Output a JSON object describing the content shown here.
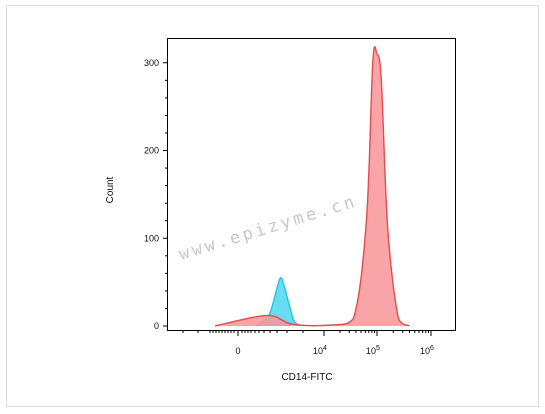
{
  "chart_data": {
    "type": "area",
    "x_axis": {
      "label": "CD14-FITC",
      "scale": "biexponential",
      "tick_labels": [
        {
          "base": "0",
          "exp": ""
        },
        {
          "base": "10",
          "exp": "4"
        },
        {
          "base": "10",
          "exp": "5"
        },
        {
          "base": "10",
          "exp": "6"
        }
      ]
    },
    "y_axis": {
      "label": "Count",
      "ylim": [
        0,
        320
      ],
      "ticks": [
        0,
        100,
        200,
        300
      ]
    },
    "series": [
      {
        "color": "#4cd6f0",
        "stroke": "#22c4e8",
        "peak_position": "~3×10^3",
        "peak_count": 55,
        "points": [
          [
            0.18,
            0
          ],
          [
            0.32,
            12
          ],
          [
            0.42,
            45
          ],
          [
            0.46,
            55
          ],
          [
            0.5,
            46
          ],
          [
            0.56,
            25
          ],
          [
            0.62,
            6
          ],
          [
            0.7,
            0
          ]
        ]
      },
      {
        "color": "#f89497",
        "stroke": "#e84a52",
        "peak_position": "~10^5",
        "peak_count": 310,
        "points": [
          [
            0.0,
            0
          ],
          [
            0.3,
            12
          ],
          [
            0.6,
            2
          ],
          [
            1.1,
            1
          ],
          [
            1.55,
            8
          ],
          [
            1.8,
            120
          ],
          [
            1.92,
            300
          ],
          [
            2.0,
            310
          ],
          [
            2.08,
            280
          ],
          [
            2.2,
            110
          ],
          [
            2.4,
            8
          ],
          [
            2.6,
            0
          ]
        ]
      }
    ],
    "grid": false
  },
  "watermark": "www.epizyme.cn"
}
